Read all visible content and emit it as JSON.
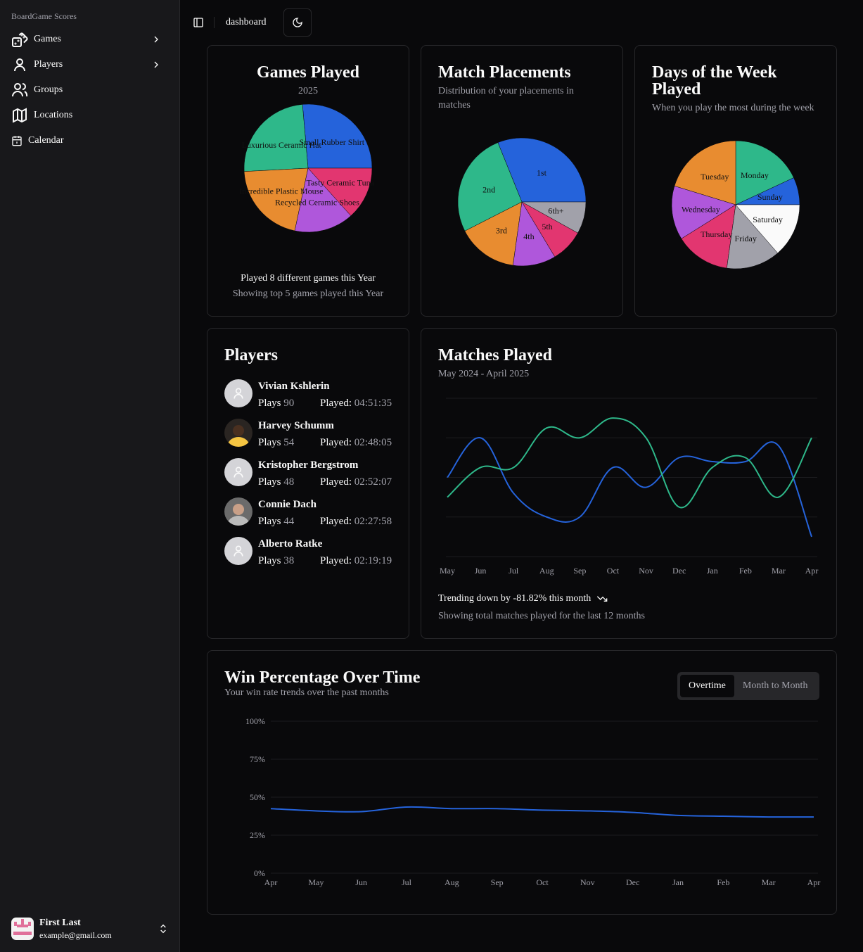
{
  "sidebar": {
    "brand": "BoardGame Scores",
    "items": [
      {
        "label": "Games",
        "icon": "dice-icon"
      },
      {
        "label": "Players",
        "icon": "user-icon"
      },
      {
        "label": "Groups",
        "icon": "users-icon"
      },
      {
        "label": "Locations",
        "icon": "map-icon"
      },
      {
        "label": "Calendar",
        "icon": "calendar-icon"
      }
    ],
    "user": {
      "name": "First Last",
      "email": "example@gmail.com"
    }
  },
  "header": {
    "title": "dashboard"
  },
  "colors": {
    "blue": "#2563db",
    "green": "#2eb88a",
    "orange": "#e88c30",
    "purple": "#af57db",
    "pink": "#e23670",
    "gray": "#a1a1aa",
    "white": "#fafafa"
  },
  "games_played": {
    "title": "Games Played",
    "subtitle": "2025",
    "footer1": "Played 8 different games this Year",
    "footer2": "Showing top 5 games played this Year"
  },
  "match_placements": {
    "title": "Match Placements",
    "subtitle": "Distribution of your placements in matches"
  },
  "days_of_week": {
    "title": "Days of the Week Played",
    "subtitle": "When you play the most during the week"
  },
  "players": {
    "title": "Players",
    "plays_label": "Plays",
    "played_label": "Played:",
    "list": [
      {
        "name": "Vivian Kshlerin",
        "plays": "90",
        "played": "04:51:35",
        "avatar": "placeholder"
      },
      {
        "name": "Harvey Schumm",
        "plays": "54",
        "played": "02:48:05",
        "avatar": "photo"
      },
      {
        "name": "Kristopher Bergstrom",
        "plays": "48",
        "played": "02:52:07",
        "avatar": "placeholder"
      },
      {
        "name": "Connie Dach",
        "plays": "44",
        "played": "02:27:58",
        "avatar": "photo"
      },
      {
        "name": "Alberto Ratke",
        "plays": "38",
        "played": "02:19:19",
        "avatar": "placeholder"
      }
    ]
  },
  "matches_played": {
    "title": "Matches Played",
    "subtitle": "May 2024 - April 2025",
    "trend": "Trending down by -81.82% this month",
    "footer": "Showing total matches played for the last 12 months"
  },
  "win_percentage": {
    "title": "Win Percentage Over Time",
    "subtitle": "Your win rate trends over the past months",
    "toggle": [
      "Overtime",
      "Month to Month"
    ],
    "active": "Overtime"
  },
  "chart_data": [
    {
      "type": "pie",
      "title": "Games Played",
      "slices": [
        {
          "label": "Small Rubber Shirt",
          "value": 95,
          "color": "#2563db"
        },
        {
          "label": "Luxurious Ceramic Hat",
          "value": 88,
          "color": "#2eb88a"
        },
        {
          "label": "Incredible Plastic Mouse",
          "value": 75,
          "color": "#e88c30"
        },
        {
          "label": "Recycled Ceramic Shoes",
          "value": 54,
          "color": "#af57db"
        },
        {
          "label": "Tasty Ceramic Tuna",
          "value": 48,
          "color": "#e23670"
        }
      ]
    },
    {
      "type": "pie",
      "title": "Match Placements",
      "slices": [
        {
          "label": "1st",
          "value": 112,
          "color": "#2563db"
        },
        {
          "label": "2nd",
          "value": 95,
          "color": "#2eb88a"
        },
        {
          "label": "3rd",
          "value": 55,
          "color": "#e88c30"
        },
        {
          "label": "4th",
          "value": 39,
          "color": "#af57db"
        },
        {
          "label": "5th",
          "value": 30,
          "color": "#e23670"
        },
        {
          "label": "6th+",
          "value": 29,
          "color": "#a1a1aa"
        }
      ]
    },
    {
      "type": "pie",
      "title": "Days of the Week Played",
      "slices": [
        {
          "label": "Sunday",
          "value": 25,
          "color": "#2563db"
        },
        {
          "label": "Monday",
          "value": 65,
          "color": "#2eb88a"
        },
        {
          "label": "Tuesday",
          "value": 73,
          "color": "#e88c30"
        },
        {
          "label": "Wednesday",
          "value": 49,
          "color": "#af57db"
        },
        {
          "label": "Thursday",
          "value": 50,
          "color": "#e23670"
        },
        {
          "label": "Friday",
          "value": 49,
          "color": "#a1a1aa"
        },
        {
          "label": "Saturday",
          "value": 49,
          "color": "#fafafa"
        }
      ]
    },
    {
      "type": "line",
      "title": "Matches Played",
      "categories": [
        "May",
        "Jun",
        "Jul",
        "Aug",
        "Sep",
        "Oct",
        "Nov",
        "Dec",
        "Jan",
        "Feb",
        "Mar",
        "Apr"
      ],
      "ylim": [
        0,
        8
      ],
      "grid": true,
      "series": [
        {
          "name": "series-a",
          "color": "#2563db",
          "values": [
            4,
            6,
            3.2,
            2,
            2,
            4.5,
            3.5,
            5,
            4.8,
            4.8,
            5.6,
            1
          ]
        },
        {
          "name": "series-b",
          "color": "#2eb88a",
          "values": [
            3,
            4.5,
            4.5,
            6.5,
            6,
            7,
            6,
            2.5,
            4.5,
            5,
            3,
            6
          ]
        }
      ]
    },
    {
      "type": "line",
      "title": "Win Percentage Over Time",
      "categories": [
        "Apr",
        "May",
        "Jun",
        "Jul",
        "Aug",
        "Sep",
        "Oct",
        "Nov",
        "Dec",
        "Jan",
        "Feb",
        "Mar",
        "Apr"
      ],
      "ylim": [
        0,
        100
      ],
      "yticks": [
        "0%",
        "25%",
        "50%",
        "75%",
        "100%"
      ],
      "grid": true,
      "series": [
        {
          "name": "win-rate",
          "color": "#2563db",
          "values": [
            42.5,
            41,
            40.5,
            43.5,
            42.5,
            42.5,
            41.5,
            41,
            40,
            38,
            37.5,
            37,
            37
          ]
        }
      ]
    }
  ]
}
